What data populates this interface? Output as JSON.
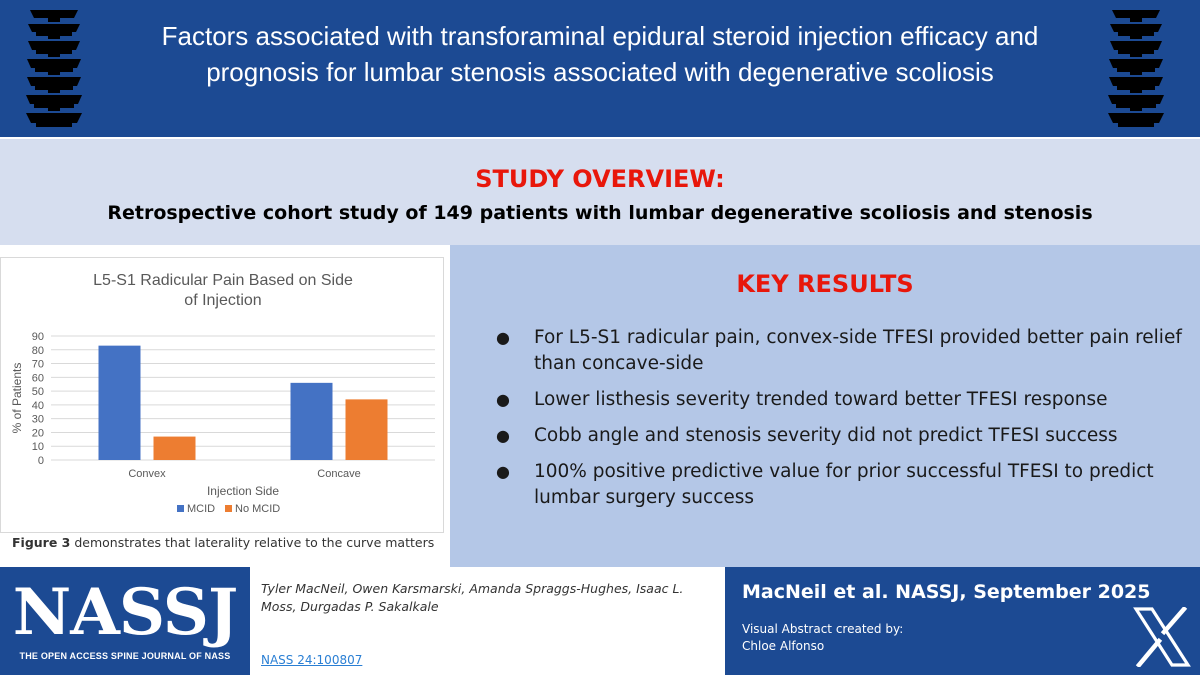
{
  "header": {
    "title": "Factors associated with transforaminal epidural steroid injection efficacy and prognosis for lumbar stenosis associated with degenerative scoliosis",
    "left_icon": "spine-vertebrae-icon",
    "right_icon": "spine-vertebrae-icon"
  },
  "overview": {
    "heading": "STUDY OVERVIEW:",
    "subheading": "Retrospective cohort study of 149 patients with lumbar degenerative scoliosis and stenosis"
  },
  "chart_data": {
    "type": "bar",
    "title": "L5-S1 Radicular Pain Based on Side of Injection",
    "xlabel": "Injection Side",
    "ylabel": "% of Patients",
    "categories": [
      "Convex",
      "Concave"
    ],
    "series": [
      {
        "name": "MCID",
        "values": [
          83,
          56
        ],
        "color": "#4472c4"
      },
      {
        "name": "No MCID",
        "values": [
          17,
          44
        ],
        "color": "#ed7d31"
      }
    ],
    "ylim": [
      0,
      90
    ],
    "yticks": [
      0,
      10,
      20,
      30,
      40,
      50,
      60,
      70,
      80,
      90
    ],
    "grid": true,
    "legend": "bottom"
  },
  "figure_caption": {
    "label": "Figure 3",
    "text": "demonstrates that laterality relative to the curve matters"
  },
  "results": {
    "heading": "KEY RESULTS",
    "bullet_symbol": "●",
    "items": [
      "For L5-S1 radicular pain, convex-side TFESI provided better pain relief than concave-side",
      "Lower listhesis severity trended toward better TFESI response",
      "Cobb angle and stenosis severity did not predict TFESI success",
      "100% positive predictive value for prior successful TFESI to predict lumbar surgery success"
    ]
  },
  "footer": {
    "logo_text": "NASSJ",
    "logo_tagline": "THE OPEN ACCESS SPINE JOURNAL OF NASS",
    "authors": "Tyler MacNeil, Owen Karsmarski, Amanda Spraggs-Hughes, Isaac L. Moss, Durgadas P. Sakalkale",
    "doi": "NASS 24:100807",
    "citation": "MacNeil et al. NASSJ, September 2025",
    "credit_label": "Visual Abstract created by:",
    "credit_name": "Chloe Alfonso",
    "social_icon": "x-logo-icon"
  },
  "colors": {
    "brand_blue": "#1c4a93",
    "accent_red": "#e8170b",
    "overview_bg": "#d6deef",
    "results_bg": "#b4c7e7"
  }
}
